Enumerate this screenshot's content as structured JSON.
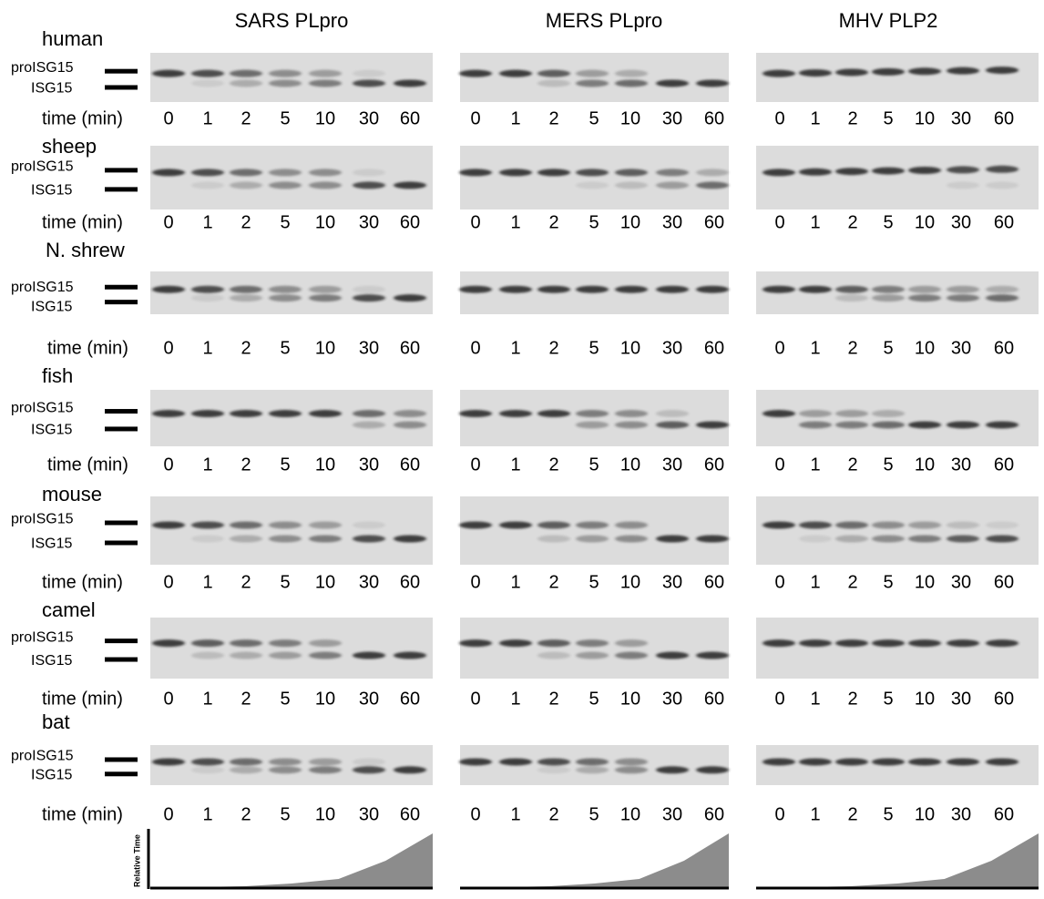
{
  "columns": [
    "SARS PLpro",
    "MERS PLpro",
    "MHV PLP2"
  ],
  "rows": [
    {
      "species": "human"
    },
    {
      "species": "sheep"
    },
    {
      "species": "N. shrew"
    },
    {
      "species": "fish"
    },
    {
      "species": "mouse"
    },
    {
      "species": "camel"
    },
    {
      "species": "bat"
    }
  ],
  "band_labels": {
    "pro": "proISG15",
    "mature": "ISG15"
  },
  "time_label": "time (min)",
  "time_points": [
    0,
    1,
    2,
    5,
    10,
    30,
    60
  ],
  "relative_time_label": "Relative Time"
}
